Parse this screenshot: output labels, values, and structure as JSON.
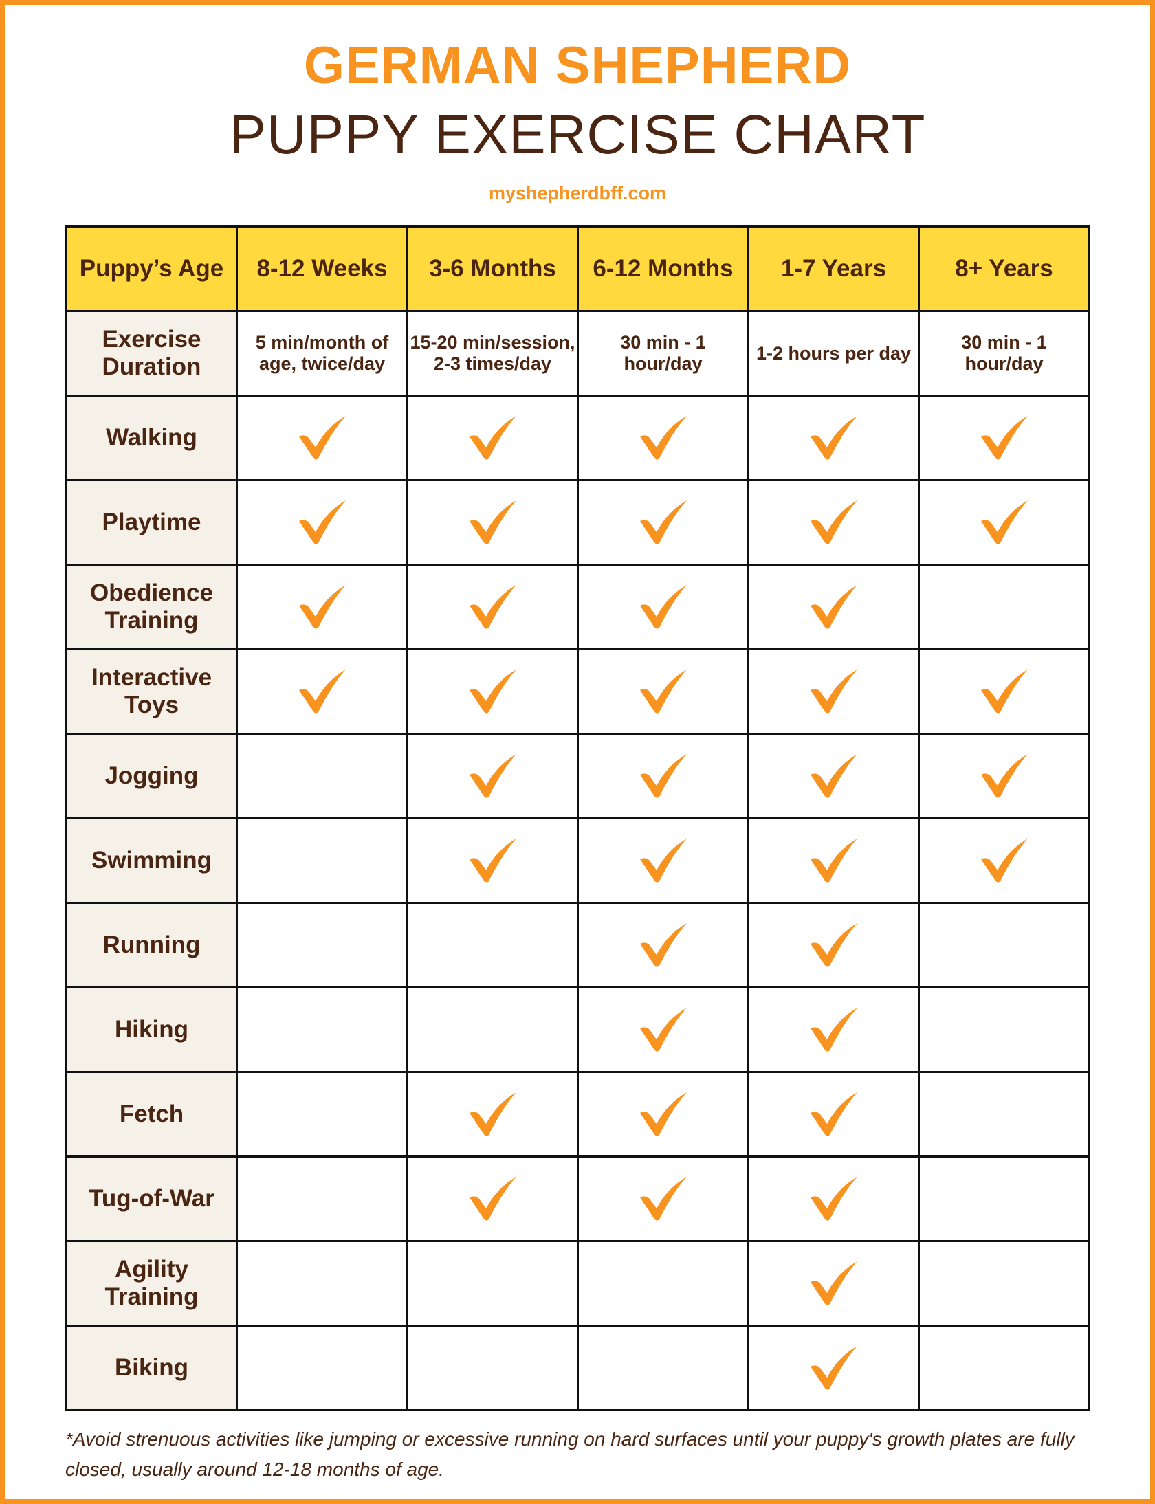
{
  "title_line1": "GERMAN SHEPHERD",
  "title_line2": "PUPPY EXERCISE CHART",
  "website": "myshepherdbff.com",
  "colors": {
    "accent": "#f7931e",
    "text": "#4a2511",
    "header_bg": "#ffd93d",
    "label_bg": "#f5f0e8"
  },
  "table": {
    "corner": "Puppy’s Age",
    "columns": [
      "8-12 Weeks",
      "3-6 Months",
      "6-12 Months",
      "1-7 Years",
      "8+ Years"
    ],
    "duration_label": "Exercise Duration",
    "durations": [
      "5 min/month of age, twice/day",
      "15-20 min/session, 2-3 times/day",
      "30 min - 1 hour/day",
      "1-2 hours per day",
      "30 min - 1 hour/day"
    ],
    "check_icon": "checkmark-icon",
    "rows": [
      {
        "activity": "Walking",
        "checks": [
          true,
          true,
          true,
          true,
          true
        ]
      },
      {
        "activity": "Playtime",
        "checks": [
          true,
          true,
          true,
          true,
          true
        ]
      },
      {
        "activity": "Obedience Training",
        "checks": [
          true,
          true,
          true,
          true,
          false
        ]
      },
      {
        "activity": "Interactive Toys",
        "checks": [
          true,
          true,
          true,
          true,
          true
        ]
      },
      {
        "activity": "Jogging",
        "checks": [
          false,
          true,
          true,
          true,
          true
        ]
      },
      {
        "activity": "Swimming",
        "checks": [
          false,
          true,
          true,
          true,
          true
        ]
      },
      {
        "activity": "Running",
        "checks": [
          false,
          false,
          true,
          true,
          false
        ]
      },
      {
        "activity": "Hiking",
        "checks": [
          false,
          false,
          true,
          true,
          false
        ]
      },
      {
        "activity": "Fetch",
        "checks": [
          false,
          true,
          true,
          true,
          false
        ]
      },
      {
        "activity": "Tug-of-War",
        "checks": [
          false,
          true,
          true,
          true,
          false
        ]
      },
      {
        "activity": "Agility Training",
        "checks": [
          false,
          false,
          false,
          true,
          false
        ]
      },
      {
        "activity": "Biking",
        "checks": [
          false,
          false,
          false,
          true,
          false
        ]
      }
    ]
  },
  "footnote": "*Avoid strenuous activities like jumping or excessive running on hard surfaces until your puppy's growth plates are fully closed, usually around 12-18 months of age."
}
